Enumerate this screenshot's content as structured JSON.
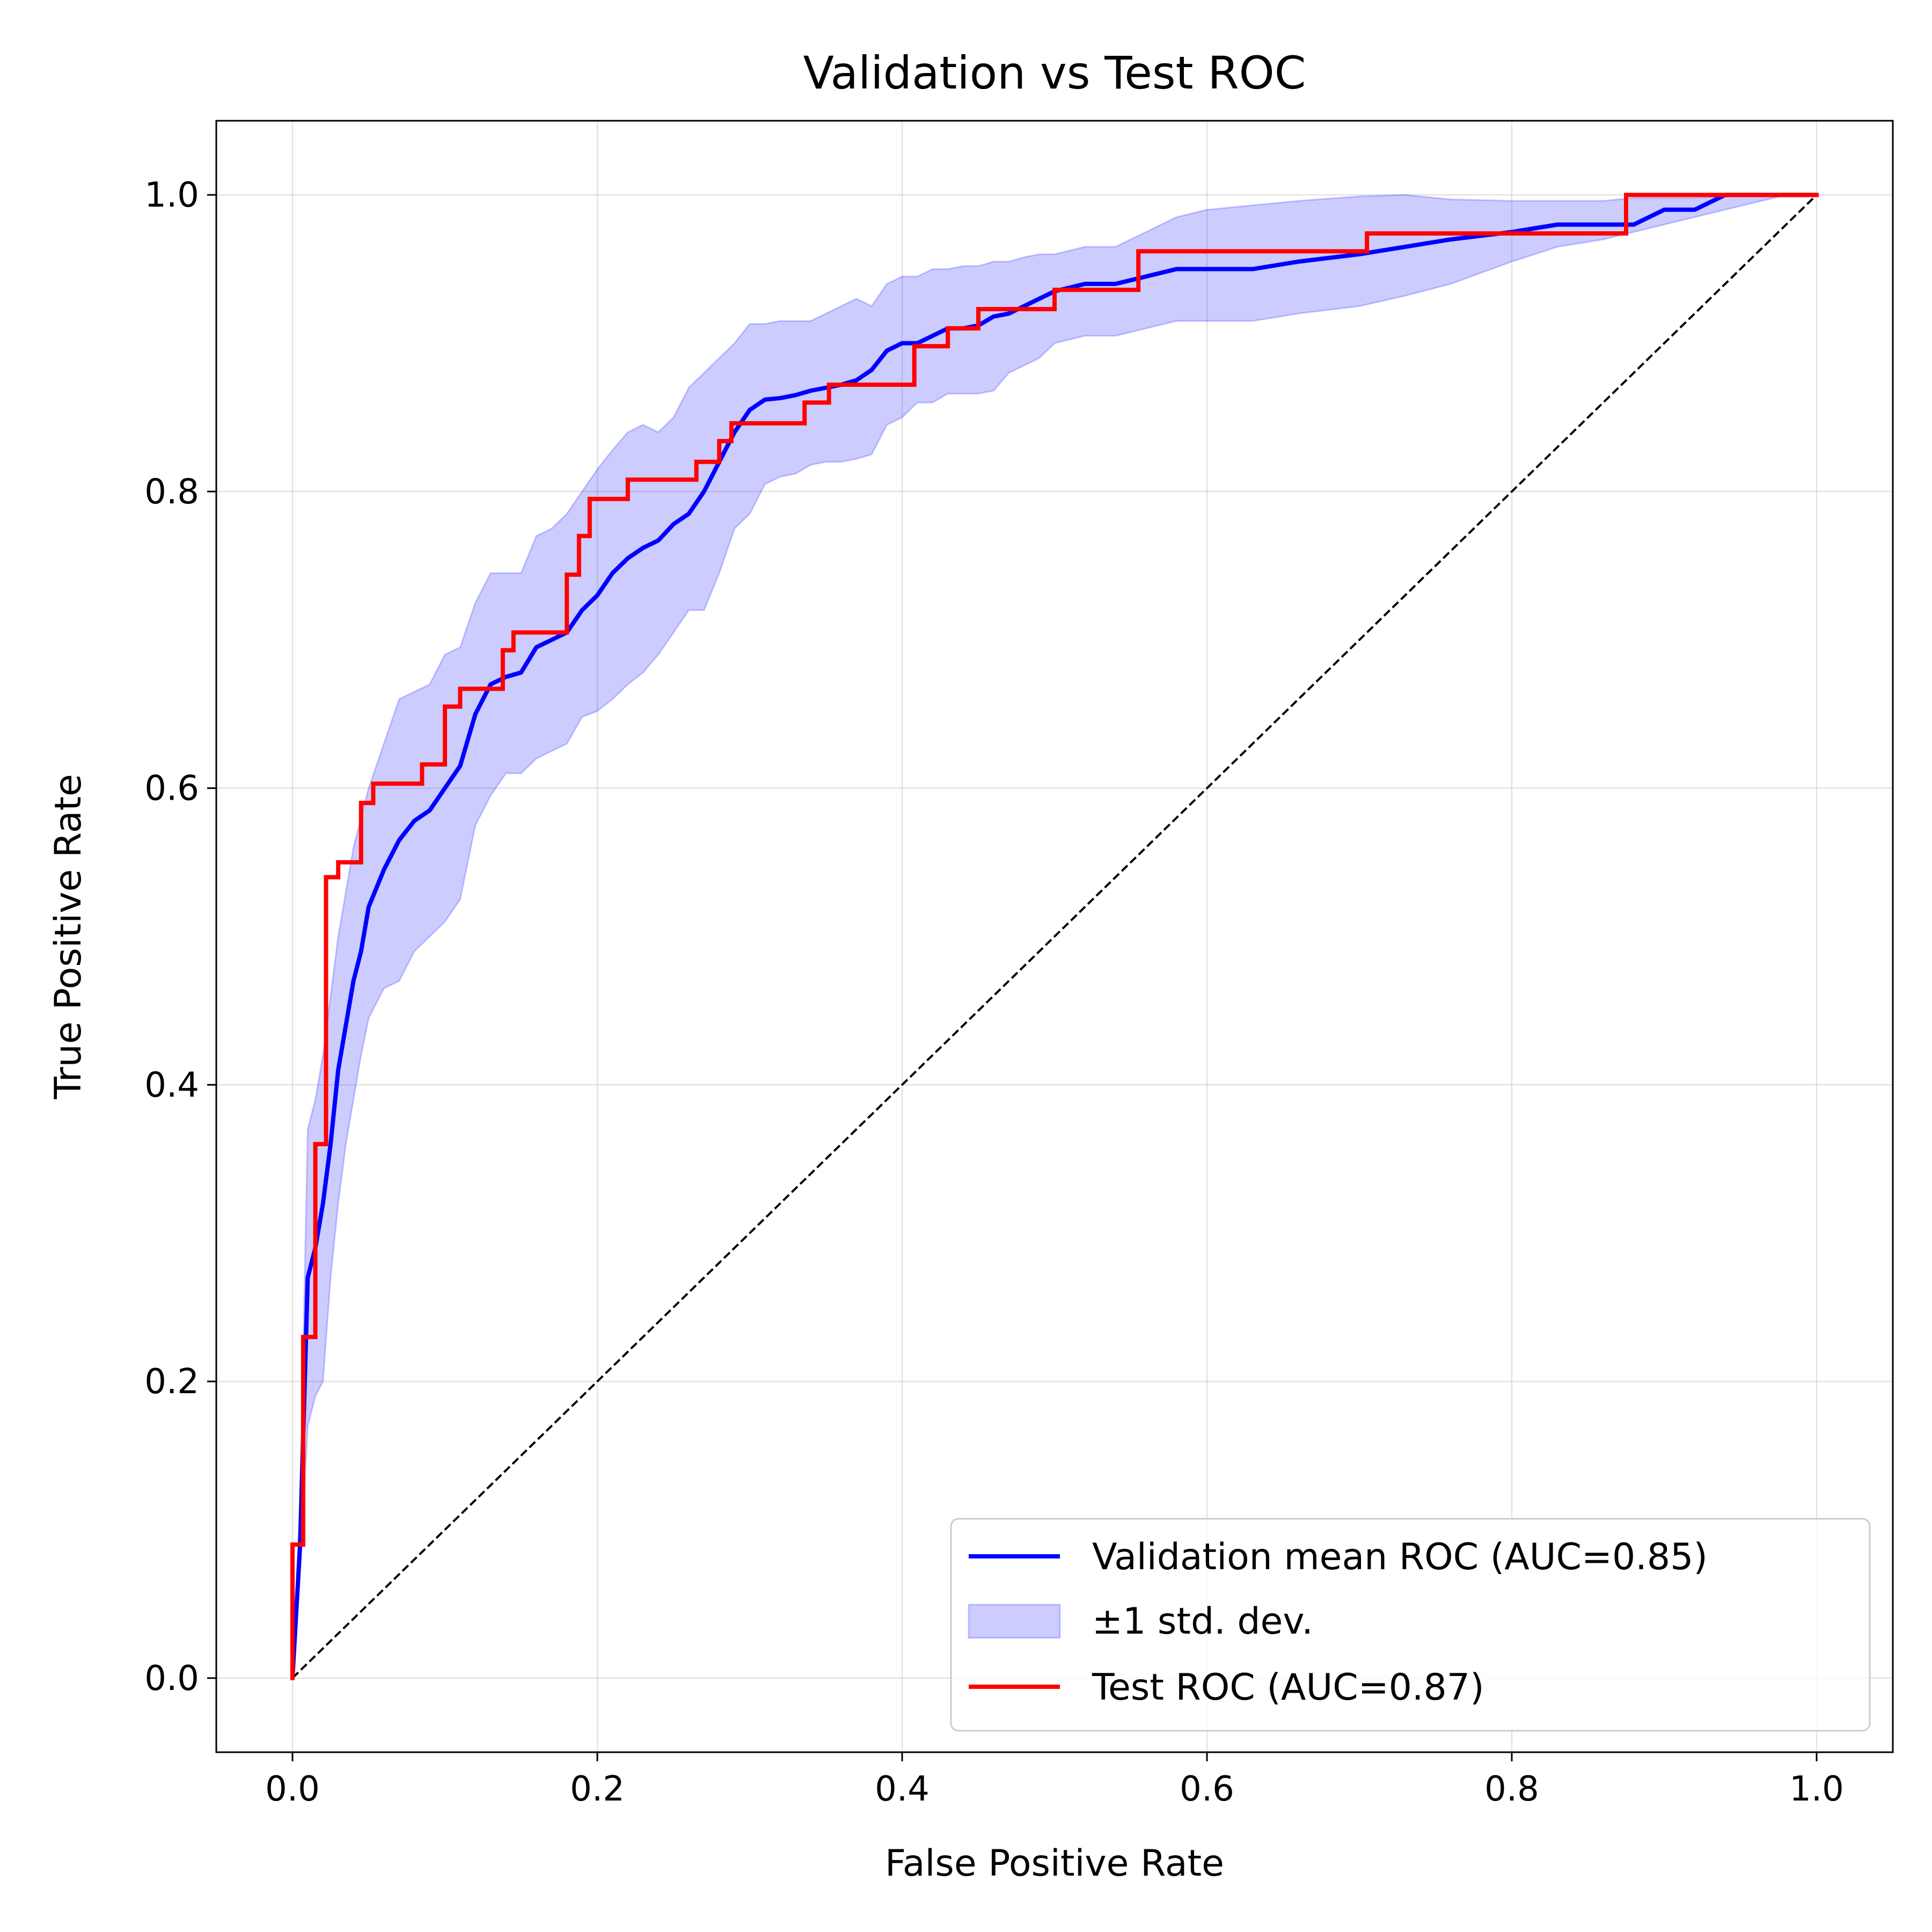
{
  "chart_data": {
    "type": "line",
    "title": "Validation vs Test ROC",
    "xlabel": "False Positive Rate",
    "ylabel": "True Positive Rate",
    "xlim": [
      -0.05,
      1.05
    ],
    "ylim": [
      -0.05,
      1.05
    ],
    "xticks": [
      0.0,
      0.2,
      0.4,
      0.6,
      0.8,
      1.0
    ],
    "yticks": [
      0.0,
      0.2,
      0.4,
      0.6,
      0.8,
      1.0
    ],
    "xtick_labels": [
      "0.0",
      "0.2",
      "0.4",
      "0.6",
      "0.8",
      "1.0"
    ],
    "ytick_labels": [
      "0.0",
      "0.2",
      "0.4",
      "0.6",
      "0.8",
      "1.0"
    ],
    "grid": true,
    "legend_position": "lower-right",
    "series": [
      {
        "name": "Validation mean ROC (AUC=0.85)",
        "kind": "line",
        "color": "#0000ff",
        "x": [
          0.0,
          0.005,
          0.01,
          0.015,
          0.02,
          0.025,
          0.03,
          0.035,
          0.04,
          0.045,
          0.05,
          0.06,
          0.07,
          0.08,
          0.09,
          0.1,
          0.11,
          0.12,
          0.13,
          0.14,
          0.15,
          0.16,
          0.17,
          0.18,
          0.19,
          0.2,
          0.21,
          0.22,
          0.23,
          0.24,
          0.25,
          0.26,
          0.27,
          0.28,
          0.29,
          0.3,
          0.31,
          0.32,
          0.33,
          0.34,
          0.35,
          0.36,
          0.37,
          0.38,
          0.39,
          0.4,
          0.41,
          0.42,
          0.43,
          0.44,
          0.45,
          0.46,
          0.47,
          0.48,
          0.49,
          0.5,
          0.52,
          0.54,
          0.56,
          0.58,
          0.6,
          0.63,
          0.66,
          0.7,
          0.73,
          0.76,
          0.8,
          0.83,
          0.86,
          0.88,
          0.9,
          0.92,
          0.94,
          0.96,
          0.98,
          1.0
        ],
        "y": [
          0.0,
          0.09,
          0.27,
          0.29,
          0.32,
          0.36,
          0.41,
          0.44,
          0.47,
          0.49,
          0.52,
          0.545,
          0.565,
          0.578,
          0.585,
          0.6,
          0.615,
          0.65,
          0.67,
          0.675,
          0.678,
          0.695,
          0.7,
          0.705,
          0.72,
          0.73,
          0.745,
          0.755,
          0.762,
          0.767,
          0.778,
          0.785,
          0.8,
          0.82,
          0.84,
          0.855,
          0.862,
          0.863,
          0.865,
          0.868,
          0.87,
          0.872,
          0.875,
          0.882,
          0.895,
          0.9,
          0.9,
          0.905,
          0.91,
          0.91,
          0.912,
          0.918,
          0.92,
          0.925,
          0.93,
          0.935,
          0.94,
          0.94,
          0.945,
          0.95,
          0.95,
          0.95,
          0.955,
          0.96,
          0.965,
          0.97,
          0.975,
          0.98,
          0.98,
          0.98,
          0.99,
          0.99,
          1.0,
          1.0,
          1.0,
          1.0
        ]
      },
      {
        "name": "±1 std. dev.",
        "kind": "band",
        "color": "#0000ff",
        "x": [
          0.0,
          0.005,
          0.01,
          0.015,
          0.02,
          0.025,
          0.03,
          0.035,
          0.04,
          0.045,
          0.05,
          0.06,
          0.07,
          0.08,
          0.09,
          0.1,
          0.11,
          0.12,
          0.13,
          0.14,
          0.15,
          0.16,
          0.17,
          0.18,
          0.19,
          0.2,
          0.21,
          0.22,
          0.23,
          0.24,
          0.25,
          0.26,
          0.27,
          0.28,
          0.29,
          0.3,
          0.31,
          0.32,
          0.33,
          0.34,
          0.35,
          0.36,
          0.37,
          0.38,
          0.39,
          0.4,
          0.41,
          0.42,
          0.43,
          0.44,
          0.45,
          0.46,
          0.47,
          0.48,
          0.49,
          0.5,
          0.52,
          0.54,
          0.56,
          0.58,
          0.6,
          0.63,
          0.66,
          0.7,
          0.73,
          0.76,
          0.8,
          0.83,
          0.86,
          0.88,
          0.9,
          0.92,
          0.94,
          0.96,
          0.98,
          1.0
        ],
        "lower": [
          0.0,
          0.07,
          0.17,
          0.19,
          0.2,
          0.27,
          0.32,
          0.36,
          0.39,
          0.42,
          0.445,
          0.465,
          0.47,
          0.49,
          0.5,
          0.51,
          0.525,
          0.575,
          0.595,
          0.61,
          0.61,
          0.62,
          0.625,
          0.63,
          0.648,
          0.652,
          0.66,
          0.67,
          0.678,
          0.69,
          0.705,
          0.72,
          0.72,
          0.745,
          0.775,
          0.785,
          0.805,
          0.81,
          0.812,
          0.818,
          0.82,
          0.82,
          0.822,
          0.825,
          0.845,
          0.85,
          0.86,
          0.86,
          0.866,
          0.866,
          0.866,
          0.868,
          0.88,
          0.885,
          0.89,
          0.9,
          0.905,
          0.905,
          0.91,
          0.915,
          0.915,
          0.915,
          0.92,
          0.925,
          0.932,
          0.94,
          0.955,
          0.965,
          0.97,
          0.975,
          0.98,
          0.985,
          0.99,
          0.995,
          1.0,
          1.0
        ],
        "upper": [
          0.0,
          0.12,
          0.37,
          0.39,
          0.42,
          0.46,
          0.5,
          0.53,
          0.56,
          0.58,
          0.6,
          0.63,
          0.66,
          0.665,
          0.67,
          0.69,
          0.695,
          0.725,
          0.745,
          0.745,
          0.745,
          0.77,
          0.775,
          0.785,
          0.8,
          0.815,
          0.828,
          0.84,
          0.845,
          0.84,
          0.85,
          0.87,
          0.88,
          0.89,
          0.9,
          0.913,
          0.913,
          0.915,
          0.915,
          0.915,
          0.92,
          0.925,
          0.93,
          0.925,
          0.94,
          0.945,
          0.945,
          0.95,
          0.95,
          0.952,
          0.952,
          0.955,
          0.955,
          0.958,
          0.96,
          0.96,
          0.965,
          0.965,
          0.975,
          0.985,
          0.99,
          0.993,
          0.996,
          0.999,
          1.0,
          0.997,
          0.996,
          0.996,
          0.996,
          0.998,
          0.998,
          0.998,
          0.999,
          1.0,
          1.0,
          1.0
        ]
      },
      {
        "name": "Test ROC (AUC=0.87)",
        "kind": "step",
        "color": "#ff0000",
        "x": [
          0.0,
          0.0,
          0.007,
          0.007,
          0.015,
          0.015,
          0.022,
          0.022,
          0.03,
          0.03,
          0.045,
          0.045,
          0.053,
          0.053,
          0.085,
          0.085,
          0.1,
          0.1,
          0.11,
          0.11,
          0.138,
          0.138,
          0.145,
          0.145,
          0.18,
          0.18,
          0.188,
          0.188,
          0.195,
          0.195,
          0.22,
          0.22,
          0.265,
          0.265,
          0.28,
          0.28,
          0.288,
          0.288,
          0.336,
          0.336,
          0.352,
          0.352,
          0.408,
          0.408,
          0.43,
          0.43,
          0.45,
          0.45,
          0.5,
          0.5,
          0.555,
          0.555,
          0.705,
          0.705,
          0.875,
          0.875,
          1.0
        ],
        "y": [
          0.0,
          0.09,
          0.09,
          0.23,
          0.23,
          0.36,
          0.36,
          0.54,
          0.54,
          0.55,
          0.55,
          0.59,
          0.59,
          0.603,
          0.603,
          0.616,
          0.616,
          0.655,
          0.655,
          0.667,
          0.667,
          0.693,
          0.693,
          0.705,
          0.705,
          0.744,
          0.744,
          0.77,
          0.77,
          0.795,
          0.795,
          0.808,
          0.808,
          0.82,
          0.82,
          0.834,
          0.834,
          0.846,
          0.846,
          0.86,
          0.86,
          0.872,
          0.872,
          0.898,
          0.898,
          0.91,
          0.91,
          0.923,
          0.923,
          0.936,
          0.936,
          0.962,
          0.962,
          0.974,
          0.974,
          1.0,
          1.0
        ]
      },
      {
        "name": "",
        "kind": "diagonal",
        "color": "#000000",
        "x": [
          0.0,
          1.0
        ],
        "y": [
          0.0,
          1.0
        ]
      }
    ]
  }
}
